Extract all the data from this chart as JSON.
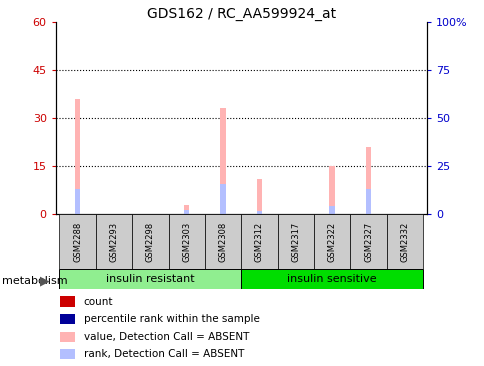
{
  "title": "GDS162 / RC_AA599924_at",
  "samples": [
    "GSM2288",
    "GSM2293",
    "GSM2298",
    "GSM2303",
    "GSM2308",
    "GSM2312",
    "GSM2317",
    "GSM2322",
    "GSM2327",
    "GSM2332"
  ],
  "absent_value": [
    36,
    0,
    0,
    3,
    33,
    11,
    0,
    15,
    21,
    0
  ],
  "absent_rank": [
    13,
    0,
    0,
    2,
    15.5,
    1.5,
    0,
    4,
    13,
    0
  ],
  "ylim_left": [
    0,
    60
  ],
  "ylim_right": [
    0,
    100
  ],
  "yticks_left": [
    0,
    15,
    30,
    45,
    60
  ],
  "yticks_right": [
    0,
    25,
    50,
    75,
    100
  ],
  "ytick_labels_left": [
    "0",
    "15",
    "30",
    "45",
    "60"
  ],
  "ytick_labels_right": [
    "0",
    "25",
    "50",
    "75",
    "100%"
  ],
  "group1_label": "insulin resistant",
  "group2_label": "insulin sensitive",
  "group1_indices": [
    0,
    1,
    2,
    3,
    4
  ],
  "group2_indices": [
    5,
    6,
    7,
    8,
    9
  ],
  "group_label_category": "metabolism",
  "absent_value_color": "#FFB3B3",
  "absent_rank_color": "#B3BFFF",
  "count_color": "#CC0000",
  "rank_color": "#000099",
  "group1_color": "#90EE90",
  "group2_color": "#00DD00",
  "tick_label_bg": "#CCCCCC",
  "bar_width": 0.15
}
